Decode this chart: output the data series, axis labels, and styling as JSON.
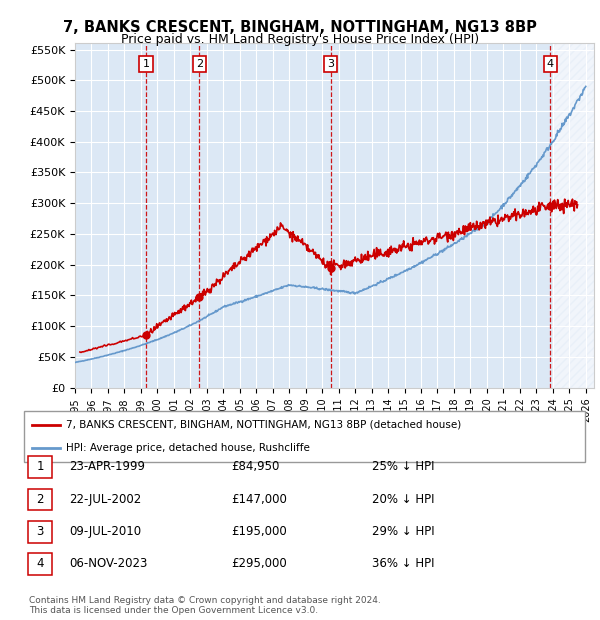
{
  "title": "7, BANKS CRESCENT, BINGHAM, NOTTINGHAM, NG13 8BP",
  "subtitle": "Price paid vs. HM Land Registry's House Price Index (HPI)",
  "y_min": 0,
  "y_max": 560000,
  "y_ticks": [
    0,
    50000,
    100000,
    150000,
    200000,
    250000,
    300000,
    350000,
    400000,
    450000,
    500000,
    550000
  ],
  "y_tick_labels": [
    "£0",
    "£50K",
    "£100K",
    "£150K",
    "£200K",
    "£250K",
    "£300K",
    "£350K",
    "£400K",
    "£450K",
    "£500K",
    "£550K"
  ],
  "sales": [
    {
      "date": "1999-04-23",
      "price": 84950,
      "label": "1"
    },
    {
      "date": "2002-07-22",
      "price": 147000,
      "label": "2"
    },
    {
      "date": "2010-07-09",
      "price": 195000,
      "label": "3"
    },
    {
      "date": "2023-11-06",
      "price": 295000,
      "label": "4"
    }
  ],
  "table_rows": [
    {
      "num": "1",
      "date": "23-APR-1999",
      "price": "£84,950",
      "pct": "25% ↓ HPI"
    },
    {
      "num": "2",
      "date": "22-JUL-2002",
      "price": "£147,000",
      "pct": "20% ↓ HPI"
    },
    {
      "num": "3",
      "date": "09-JUL-2010",
      "price": "£195,000",
      "pct": "29% ↓ HPI"
    },
    {
      "num": "4",
      "date": "06-NOV-2023",
      "price": "£295,000",
      "pct": "36% ↓ HPI"
    }
  ],
  "legend_label_red": "7, BANKS CRESCENT, BINGHAM, NOTTINGHAM, NG13 8BP (detached house)",
  "legend_label_blue": "HPI: Average price, detached house, Rushcliffe",
  "footer": "Contains HM Land Registry data © Crown copyright and database right 2024.\nThis data is licensed under the Open Government Licence v3.0.",
  "red_color": "#cc0000",
  "blue_color": "#6699cc",
  "bg_chart": "#dce8f5",
  "hatch_color": "#aabbcc"
}
